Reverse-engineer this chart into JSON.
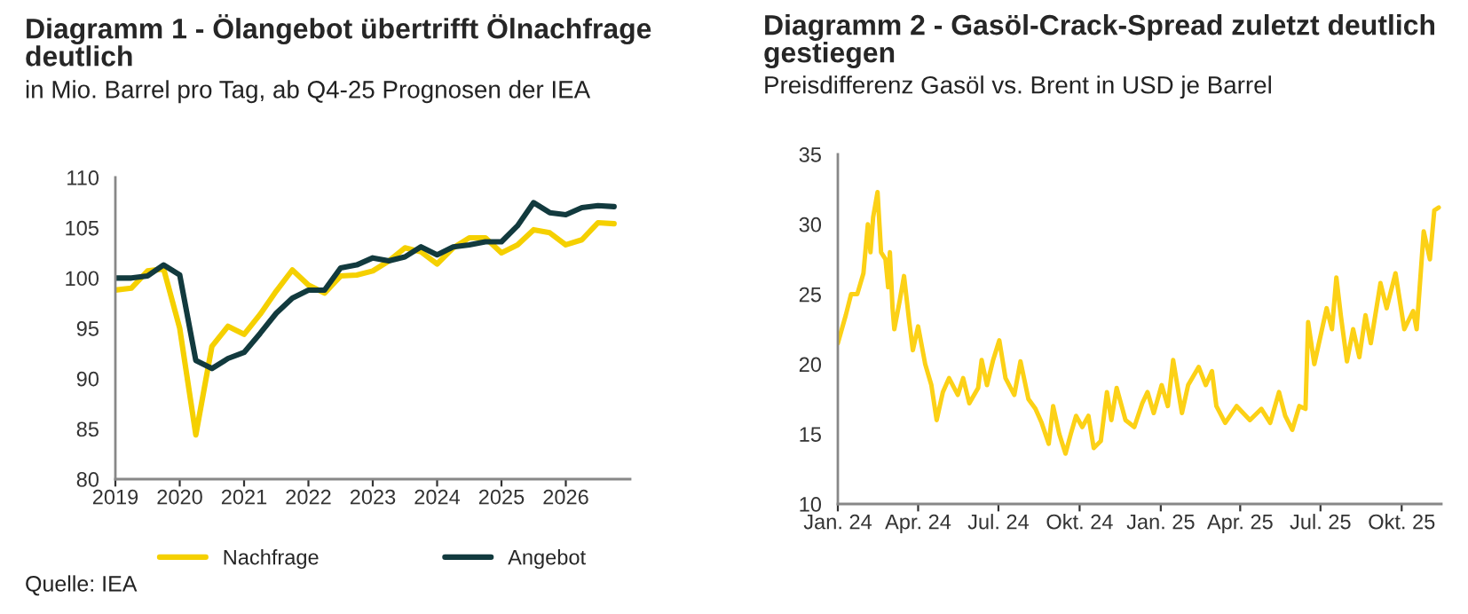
{
  "chart_data": [
    {
      "type": "line",
      "title": "Diagramm 1 - Ölangebot übertrifft Ölnachfrage deutlich",
      "subtitle": "in Mio. Barrel pro Tag, ab Q4-25 Prognosen der IEA",
      "x": [
        2019,
        2019.25,
        2019.5,
        2019.75,
        2020,
        2020.25,
        2020.5,
        2020.75,
        2021,
        2021.25,
        2021.5,
        2021.75,
        2022,
        2022.25,
        2022.5,
        2022.75,
        2023,
        2023.25,
        2023.5,
        2023.75,
        2024,
        2024.25,
        2024.5,
        2024.75,
        2025,
        2025.25,
        2025.5,
        2025.75,
        2026,
        2026.25,
        2026.5,
        2026.75
      ],
      "series": [
        {
          "name": "Nachfrage",
          "color": "#f5d000",
          "values": [
            98.8,
            99.0,
            100.7,
            100.9,
            95.0,
            84.4,
            93.2,
            95.2,
            94.4,
            96.4,
            98.7,
            100.8,
            99.3,
            98.5,
            100.2,
            100.3,
            100.7,
            101.7,
            103.0,
            102.6,
            101.4,
            103.0,
            104.0,
            104.0,
            102.5,
            103.3,
            104.8,
            104.5,
            103.3,
            103.8,
            105.5,
            105.4
          ]
        },
        {
          "name": "Angebot",
          "color": "#123a3e",
          "values": [
            100,
            100,
            100.2,
            101.3,
            100.3,
            91.8,
            91.0,
            92.0,
            92.6,
            94.5,
            96.5,
            98.0,
            98.8,
            98.8,
            101.0,
            101.3,
            102.0,
            101.7,
            102.1,
            103.1,
            102.3,
            103.1,
            103.3,
            103.6,
            103.6,
            105.2,
            107.5,
            106.5,
            106.3,
            107.0,
            107.2,
            107.1
          ]
        }
      ],
      "xlim": [
        2019,
        2027
      ],
      "xticks": [
        2019,
        2020,
        2021,
        2022,
        2023,
        2024,
        2025,
        2026
      ],
      "ylim": [
        80,
        110
      ],
      "yticks": [
        80,
        85,
        90,
        95,
        100,
        105,
        110
      ],
      "legend": "bottom",
      "grid": false,
      "marker": "none",
      "line_style": "solid",
      "annotations": [
        "Quelle: IEA"
      ]
    },
    {
      "type": "line",
      "title": "Diagramm 2 - Gasöl-Crack-Spread zuletzt deutlich gestiegen",
      "subtitle": "Preisdifferenz Gasöl vs. Brent in USD je Barrel",
      "x": [
        "2024-01-01",
        "2024-01-10",
        "2024-01-16",
        "2024-01-23",
        "2024-01-30",
        "2024-02-04",
        "2024-02-07",
        "2024-02-10",
        "2024-02-15",
        "2024-02-19",
        "2024-02-24",
        "2024-02-27",
        "2024-02-29",
        "2024-03-03",
        "2024-03-05",
        "2024-03-11",
        "2024-03-16",
        "2024-03-22",
        "2024-03-26",
        "2024-04-01",
        "2024-04-09",
        "2024-04-16",
        "2024-04-22",
        "2024-04-29",
        "2024-05-06",
        "2024-05-16",
        "2024-05-22",
        "2024-05-29",
        "2024-06-08",
        "2024-06-12",
        "2024-06-18",
        "2024-06-25",
        "2024-07-02",
        "2024-07-09",
        "2024-07-19",
        "2024-07-26",
        "2024-08-04",
        "2024-08-12",
        "2024-08-19",
        "2024-08-27",
        "2024-09-01",
        "2024-09-08",
        "2024-09-15",
        "2024-09-21",
        "2024-09-27",
        "2024-10-04",
        "2024-10-11",
        "2024-10-17",
        "2024-10-25",
        "2024-11-01",
        "2024-11-06",
        "2024-11-12",
        "2024-11-22",
        "2024-12-02",
        "2024-12-11",
        "2024-12-17",
        "2024-12-24",
        "2025-01-02",
        "2025-01-09",
        "2025-01-15",
        "2025-01-25",
        "2025-02-01",
        "2025-02-13",
        "2025-02-21",
        "2025-02-28",
        "2025-03-05",
        "2025-03-15",
        "2025-03-28",
        "2025-04-12",
        "2025-04-25",
        "2025-05-05",
        "2025-05-15",
        "2025-05-22",
        "2025-05-30",
        "2025-06-07",
        "2025-06-14",
        "2025-06-17",
        "2025-06-24",
        "2025-07-01",
        "2025-07-08",
        "2025-07-14",
        "2025-07-19",
        "2025-07-24",
        "2025-07-31",
        "2025-08-07",
        "2025-08-14",
        "2025-08-21",
        "2025-08-27",
        "2025-09-07",
        "2025-09-14",
        "2025-09-24",
        "2025-10-04",
        "2025-10-14",
        "2025-10-18",
        "2025-10-26",
        "2025-11-02",
        "2025-11-07",
        "2025-11-12"
      ],
      "series": [
        {
          "color": "#fcd116",
          "values": [
            21.5,
            23.5,
            25,
            25,
            26.5,
            30,
            28,
            30.5,
            32.3,
            28,
            27.5,
            25.5,
            28,
            24,
            22.5,
            24.5,
            26.3,
            23,
            21,
            22.7,
            20,
            18.5,
            16,
            18,
            19,
            17.8,
            19,
            17.2,
            18.3,
            20.3,
            18.5,
            20.3,
            21.7,
            19,
            17.8,
            20.2,
            17.5,
            16.8,
            15.8,
            14.3,
            17,
            15,
            13.6,
            15,
            16.3,
            15.5,
            16.3,
            14,
            14.5,
            18,
            16,
            18.3,
            16,
            15.5,
            17.2,
            18,
            16.5,
            18.5,
            17,
            20.3,
            16.5,
            18.5,
            19.8,
            18.5,
            19.5,
            17,
            15.8,
            17,
            16,
            16.8,
            15.8,
            18,
            16.3,
            15.3,
            17,
            16.8,
            23,
            20,
            22,
            24,
            22.5,
            26.2,
            23.5,
            20.2,
            22.5,
            20.5,
            23.5,
            21.5,
            25.8,
            24,
            26.5,
            22.5,
            23.8,
            22.5,
            29.5,
            27.5,
            31,
            31.2
          ]
        }
      ],
      "xlim": [
        "2024-01-01",
        "2025-11-15"
      ],
      "xticks": [
        {
          "value": "2024-01-01",
          "label": "Jan. 24"
        },
        {
          "value": "2024-04-01",
          "label": "Apr. 24"
        },
        {
          "value": "2024-07-01",
          "label": "Jul. 24"
        },
        {
          "value": "2024-10-01",
          "label": "Okt. 24"
        },
        {
          "value": "2025-01-01",
          "label": "Jan. 25"
        },
        {
          "value": "2025-04-01",
          "label": "Apr. 25"
        },
        {
          "value": "2025-07-01",
          "label": "Jul. 25"
        },
        {
          "value": "2025-10-01",
          "label": "Okt. 25"
        }
      ],
      "ylim": [
        10,
        35
      ],
      "yticks": [
        10,
        15,
        20,
        25,
        30,
        35
      ],
      "grid": false,
      "marker": "none",
      "line_style": "solid"
    }
  ]
}
